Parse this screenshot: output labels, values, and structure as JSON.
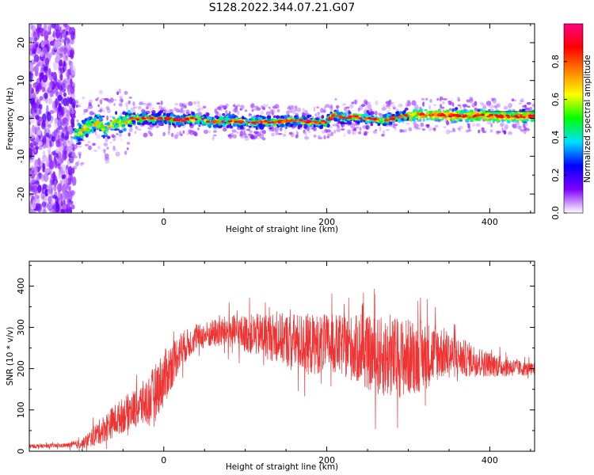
{
  "figure": {
    "title": "S128.2022.344.07.21.G07"
  },
  "chart_data": [
    {
      "type": "heatmap",
      "xlabel": "Height of straight line (km)",
      "ylabel": "Frequency (Hz)",
      "xlim": [
        -165,
        455
      ],
      "ylim": [
        -25,
        25
      ],
      "xticks": [
        0,
        200,
        400
      ],
      "yticks": [
        -20,
        -10,
        0,
        10,
        20
      ],
      "ridge": {
        "x": [
          -110,
          -100,
          -90,
          -80,
          -70,
          -60,
          -50,
          -40,
          -30,
          -20,
          -10,
          0,
          20,
          40,
          60,
          80,
          100,
          120,
          140,
          160,
          180,
          200,
          210,
          220,
          230,
          250,
          270,
          290,
          310,
          330,
          350,
          370,
          390,
          410,
          430,
          455
        ],
        "freq": [
          -5,
          -3,
          -2,
          -1,
          -3,
          -1,
          -1,
          0,
          0,
          0,
          0,
          0,
          -0.5,
          0,
          -1,
          -0.5,
          -1,
          -1,
          -1,
          -0.5,
          -1,
          -1,
          1,
          0,
          0.5,
          0,
          -0.5,
          0.5,
          1,
          1,
          0.8,
          0.6,
          0.8,
          0.6,
          0.5,
          0.5
        ]
      },
      "colorbar": {
        "label": "Normalized spectral amplitude",
        "range": [
          0,
          1
        ],
        "ticks": [
          "0.0",
          "0.2",
          "0.4",
          "0.6",
          "0.8"
        ],
        "colors": [
          "#ffffff",
          "#7f00ff",
          "#0000ff",
          "#00e0ff",
          "#00ff00",
          "#ffff00",
          "#ff8000",
          "#ff0000",
          "#ff0080"
        ]
      }
    },
    {
      "type": "line",
      "xlabel": "Height of straight line (km)",
      "ylabel": "SNR (10 * v/v)",
      "xlim": [
        -165,
        455
      ],
      "ylim": [
        0,
        460
      ],
      "xticks": [
        0,
        200,
        400
      ],
      "yticks": [
        0,
        100,
        200,
        300,
        400
      ],
      "color": "#ee3333",
      "envelope": {
        "x": [
          -165,
          -120,
          -100,
          -80,
          -60,
          -40,
          -20,
          0,
          20,
          40,
          60,
          80,
          100,
          120,
          140,
          160,
          180,
          200,
          220,
          240,
          260,
          280,
          300,
          320,
          340,
          360,
          380,
          400,
          420,
          440,
          455
        ],
        "mean": [
          12,
          14,
          18,
          45,
          75,
          100,
          120,
          175,
          245,
          275,
          285,
          290,
          285,
          280,
          275,
          265,
          258,
          262,
          255,
          245,
          230,
          225,
          228,
          232,
          240,
          228,
          220,
          210,
          205,
          200,
          198
        ],
        "amplitude": [
          5,
          5,
          12,
          30,
          40,
          45,
          60,
          70,
          45,
          30,
          35,
          40,
          45,
          55,
          60,
          70,
          75,
          70,
          75,
          85,
          95,
          100,
          95,
          85,
          65,
          50,
          40,
          30,
          25,
          18,
          15
        ]
      }
    }
  ]
}
